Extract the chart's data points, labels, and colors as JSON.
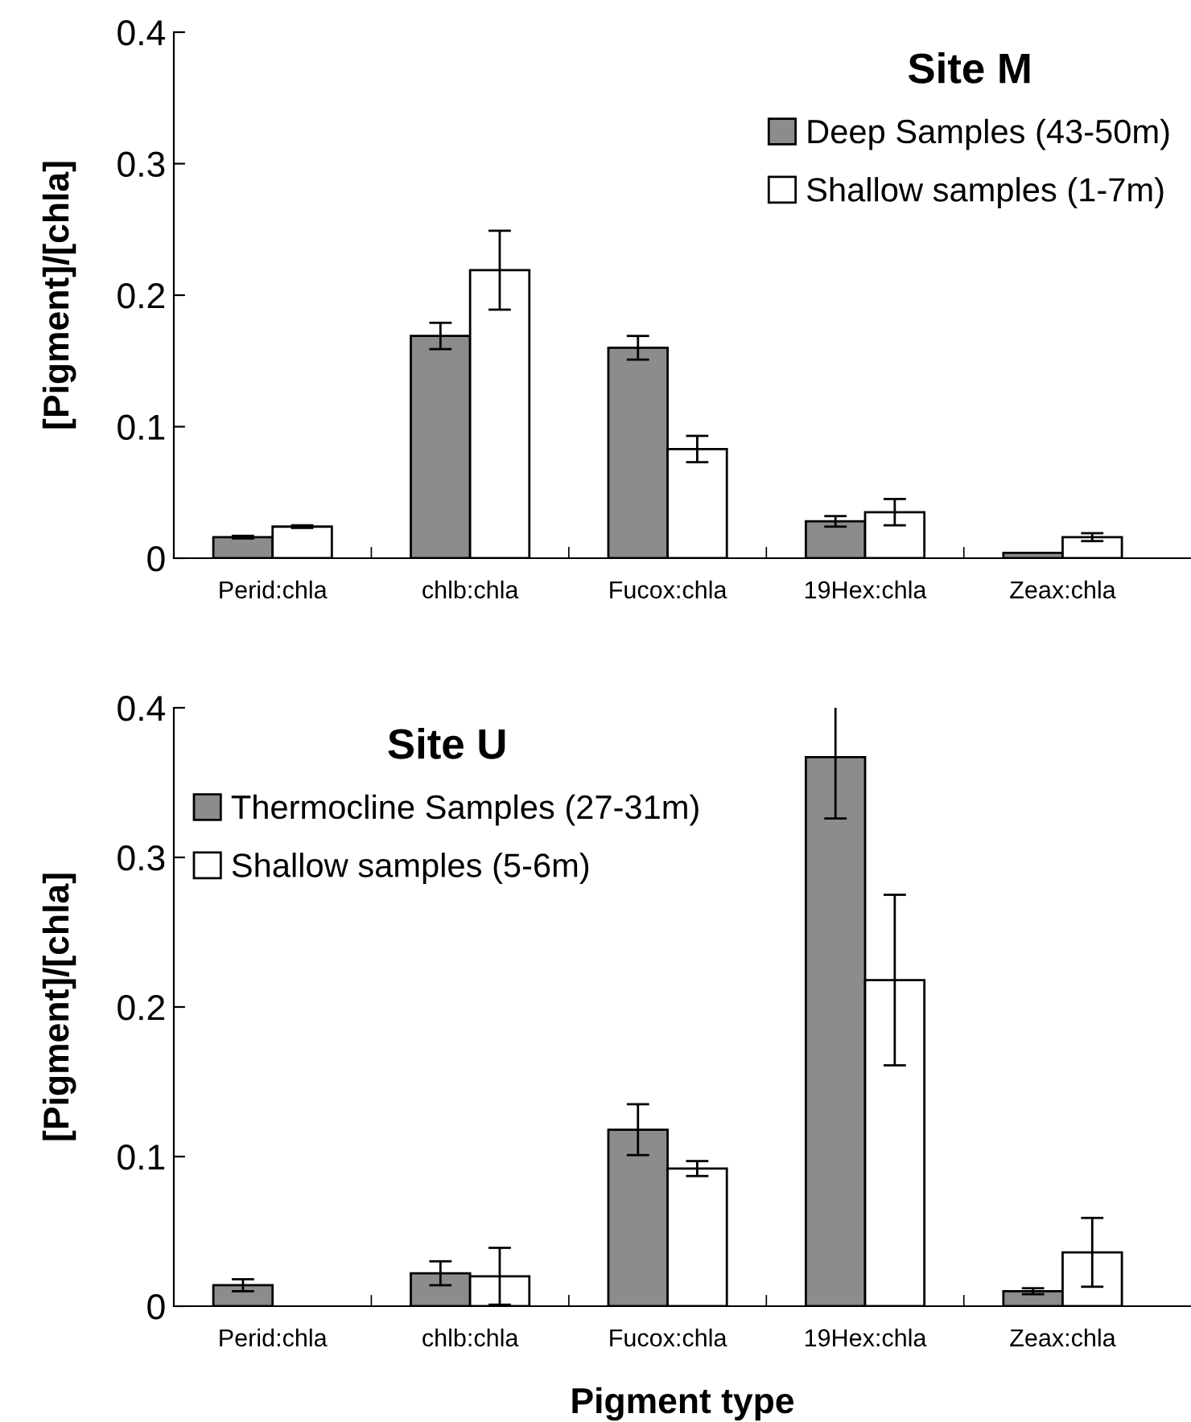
{
  "chart_data": [
    {
      "type": "bar",
      "legend_title": "Site M",
      "ylabel": "[Pigment]/[chla]",
      "categories": [
        "Perid:chla",
        "chlb:chla",
        "Fucox:chla",
        "19Hex:chla",
        "Zeax:chla"
      ],
      "ylim": [
        0,
        0.4
      ],
      "yticks": [
        0,
        0.1,
        0.2,
        0.3,
        0.4
      ],
      "legend": "top right",
      "grid": false,
      "series": [
        {
          "name": "Deep Samples (43-50m)",
          "color": "#8c8c8c",
          "values": [
            0.016,
            0.169,
            0.16,
            0.028,
            0.004
          ],
          "errors": [
            0.001,
            0.01,
            0.009,
            0.004,
            null
          ]
        },
        {
          "name": "Shallow samples (1-7m)",
          "color": "#ffffff",
          "values": [
            0.024,
            0.219,
            0.083,
            0.035,
            0.016
          ],
          "errors": [
            0.001,
            0.03,
            0.01,
            0.01,
            0.003
          ]
        }
      ]
    },
    {
      "type": "bar",
      "legend_title": "Site U",
      "ylabel": "[Pigment]/[chla]",
      "xlabel": "Pigment type",
      "categories": [
        "Perid:chla",
        "chlb:chla",
        "Fucox:chla",
        "19Hex:chla",
        "Zeax:chla"
      ],
      "ylim": [
        0,
        0.4
      ],
      "yticks": [
        0,
        0.1,
        0.2,
        0.3,
        0.4
      ],
      "legend": "top left",
      "grid": false,
      "series": [
        {
          "name": "Thermocline Samples (27-31m)",
          "color": "#8c8c8c",
          "values": [
            0.014,
            0.022,
            0.118,
            0.367,
            0.01
          ],
          "errors": [
            0.004,
            0.008,
            0.017,
            0.041,
            0.002
          ]
        },
        {
          "name": "Shallow samples (5-6m)",
          "color": "#ffffff",
          "values": [
            null,
            0.02,
            0.092,
            0.218,
            0.036
          ],
          "errors": [
            null,
            0.019,
            0.005,
            0.057,
            0.023
          ]
        }
      ]
    }
  ]
}
